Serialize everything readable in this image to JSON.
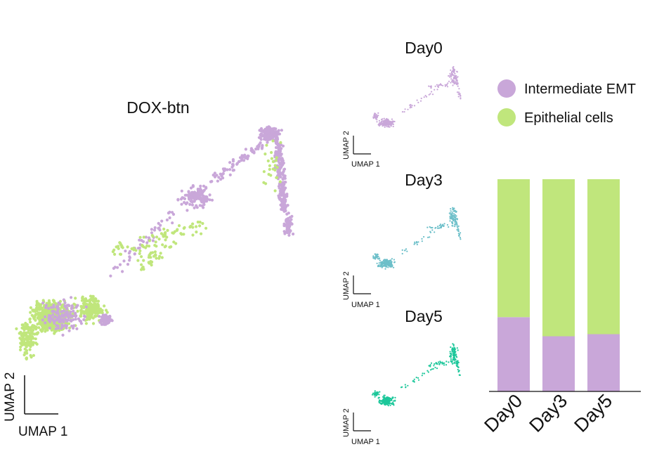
{
  "colors": {
    "intermediate": "#c9a7d9",
    "epithelial": "#c0e67c",
    "day3_cells": "#6cbfc9",
    "day5_cells": "#1cc79a",
    "axis": "#111111"
  },
  "main_umap": {
    "title": "DOX-btn",
    "xlabel": "UMAP 1",
    "ylabel": "UMAP 2"
  },
  "small_umaps": [
    {
      "title": "Day0",
      "xlabel": "UMAP 1",
      "ylabel": "UMAP 2",
      "color": "#c9a7d9"
    },
    {
      "title": "Day3",
      "xlabel": "UMAP 1",
      "ylabel": "UMAP 2",
      "color": "#6cbfc9"
    },
    {
      "title": "Day5",
      "xlabel": "UMAP 1",
      "ylabel": "UMAP 2",
      "color": "#1cc79a"
    }
  ],
  "legend": [
    {
      "label": "Intermediate EMT",
      "color": "#c9a7d9"
    },
    {
      "label": "Epithelial cells",
      "color": "#c0e67c"
    }
  ],
  "chart_data": {
    "type": "bar",
    "stacked": true,
    "categories": [
      "Day0",
      "Day3",
      "Day5"
    ],
    "series": [
      {
        "name": "Intermediate EMT",
        "values": [
          0.35,
          0.26,
          0.27
        ]
      },
      {
        "name": "Epithelial cells",
        "values": [
          0.65,
          0.74,
          0.73
        ]
      }
    ],
    "ylim": [
      0,
      1
    ],
    "legend_position": "top-right"
  }
}
